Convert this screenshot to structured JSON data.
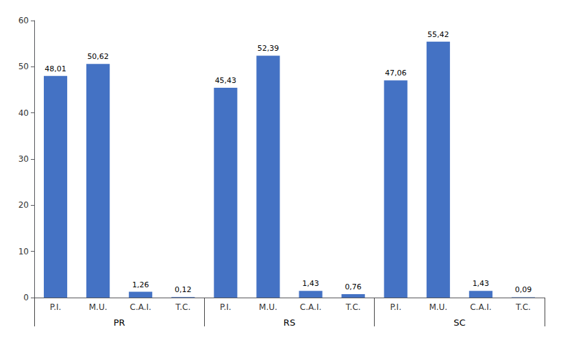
{
  "chart_data": {
    "type": "bar",
    "categories": [
      "P.I.",
      "M.U.",
      "C.A.I.",
      "T.C.",
      "P.I.",
      "M.U.",
      "C.A.I.",
      "T.C.",
      "P.I.",
      "M.U.",
      "C.A.I.",
      "T.C."
    ],
    "groups": [
      "PR",
      "RS",
      "SC"
    ],
    "values": [
      48.01,
      50.62,
      1.26,
      0.12,
      45.43,
      52.39,
      1.43,
      0.76,
      47.06,
      55.42,
      1.43,
      0.09
    ],
    "value_labels": [
      "48,01",
      "50,62",
      "1,26",
      "0,12",
      "45,43",
      "52,39",
      "1,43",
      "0,76",
      "47,06",
      "55,42",
      "1,43",
      "0,09"
    ],
    "data_labels": true,
    "color": "#4472C4",
    "ylim": [
      0,
      60
    ],
    "yticks": [
      0,
      10,
      20,
      30,
      40,
      50,
      60
    ],
    "grid": false
  }
}
